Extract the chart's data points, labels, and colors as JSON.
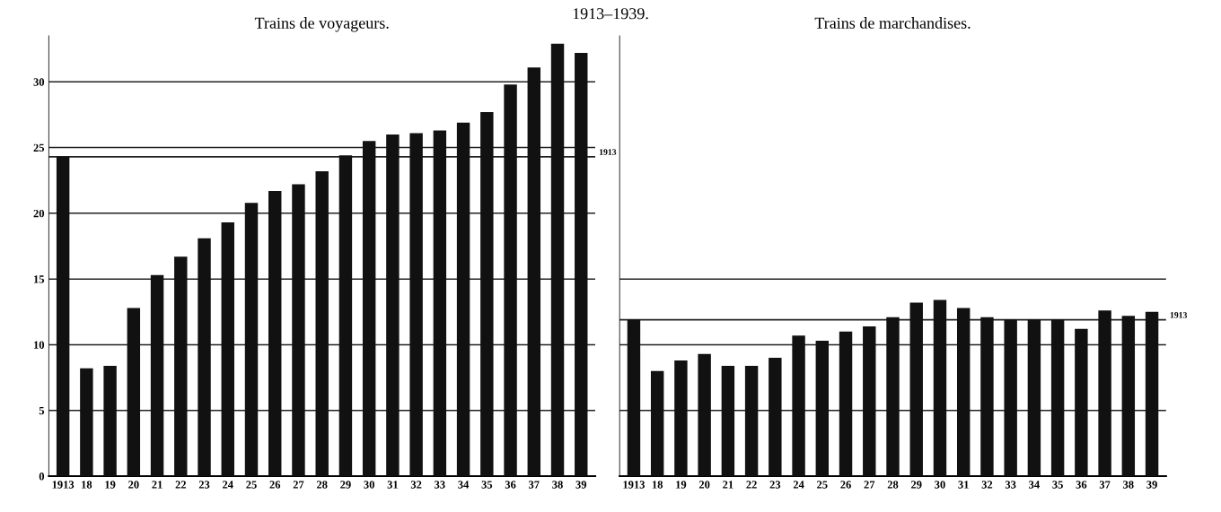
{
  "chart_data": [
    {
      "type": "bar",
      "title": "Trains de voyageurs.",
      "categories": [
        "1913",
        "18",
        "19",
        "20",
        "21",
        "22",
        "23",
        "24",
        "25",
        "26",
        "27",
        "28",
        "29",
        "30",
        "31",
        "32",
        "33",
        "34",
        "35",
        "36",
        "37",
        "38",
        "39"
      ],
      "values": [
        24.3,
        8.2,
        8.4,
        12.8,
        15.3,
        16.7,
        18.1,
        19.3,
        20.8,
        21.7,
        22.2,
        23.2,
        24.4,
        25.5,
        26.0,
        26.1,
        26.3,
        26.9,
        27.7,
        29.8,
        31.1,
        32.9,
        32.2
      ],
      "color": "#111111",
      "ylim": [
        0,
        33.5
      ],
      "yticks": [
        0,
        5,
        10,
        15,
        20,
        25,
        30
      ],
      "grid": "y",
      "ref_lines": [
        {
          "axis": "y",
          "value": 24.3
        }
      ],
      "annotations": [
        "1913–1939.",
        "1913"
      ]
    },
    {
      "type": "bar",
      "title": "Trains de marchandises.",
      "categories": [
        "1913",
        "18",
        "19",
        "20",
        "21",
        "22",
        "23",
        "24",
        "25",
        "26",
        "27",
        "28",
        "29",
        "30",
        "31",
        "32",
        "33",
        "34",
        "35",
        "36",
        "37",
        "38",
        "39"
      ],
      "values": [
        11.9,
        8.0,
        8.8,
        9.3,
        8.4,
        8.4,
        9.0,
        10.7,
        10.3,
        11.0,
        11.4,
        12.1,
        13.2,
        13.4,
        12.8,
        12.1,
        11.9,
        11.9,
        11.9,
        11.2,
        12.6,
        12.2,
        12.5
      ],
      "color": "#111111",
      "ylim": [
        0,
        33.5
      ],
      "yticks": [
        0,
        5,
        10,
        15
      ],
      "grid": "y",
      "tick_labels": "x",
      "ref_lines": [
        {
          "axis": "y",
          "value": 11.9
        }
      ],
      "annotations": [
        "1913"
      ]
    }
  ]
}
